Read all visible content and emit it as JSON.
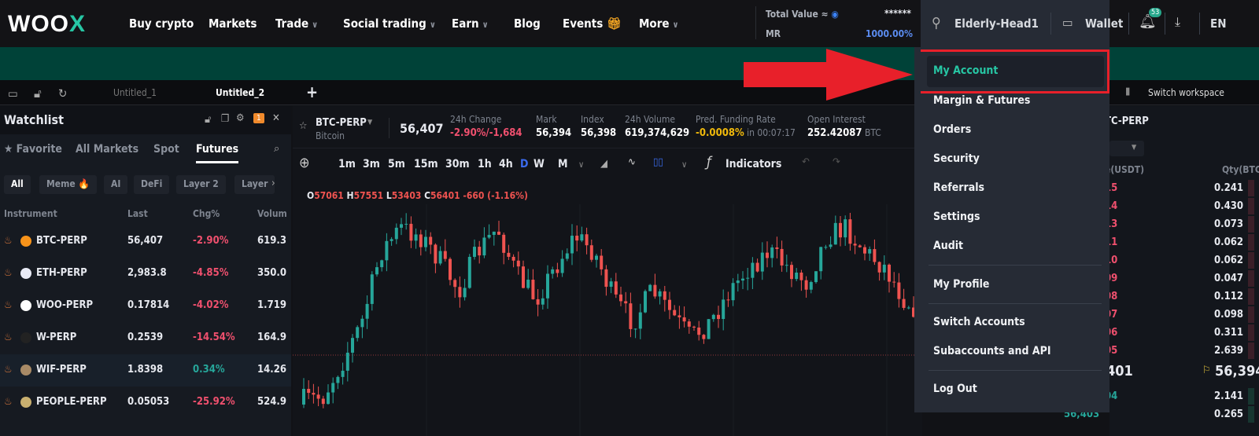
{
  "header": {
    "logo": "WOOX",
    "nav": [
      {
        "label": "Buy crypto"
      },
      {
        "label": "Markets"
      },
      {
        "label": "Trade",
        "dropdown": true
      },
      {
        "label": "Social trading",
        "dropdown": true
      },
      {
        "label": "Earn",
        "dropdown": true
      },
      {
        "label": "Blog"
      },
      {
        "label": "Events",
        "icon": "gift-icon"
      },
      {
        "label": "More",
        "dropdown": true
      }
    ],
    "total_value_label": "Total Value ≈",
    "total_value": "******",
    "mr_label": "MR",
    "mr_value": "1000.00%",
    "username": "Elderly-Head1",
    "wallet": "Wallet",
    "notif_count": "53",
    "lang": "EN"
  },
  "workspace": {
    "tabs": [
      "Untitled_1",
      "Untitled_2"
    ],
    "add": "+",
    "switch": "Switch workspace"
  },
  "watchlist": {
    "title": "Watchlist",
    "badge": "1",
    "tabs": [
      "★ Favorite",
      "All Markets",
      "Spot",
      "Futures"
    ],
    "active_tab": "Futures",
    "chips": [
      "All",
      "Meme 🔥",
      "AI",
      "DeFi",
      "Layer 2",
      "Layer"
    ],
    "columns": [
      "Instrument",
      "Last",
      "Chg%",
      "Volum"
    ],
    "rows": [
      {
        "symbol": "BTC-PERP",
        "last": "56,407",
        "chg": "-2.90%",
        "vol": "619.3",
        "up": false,
        "coin": "#f7931a"
      },
      {
        "symbol": "ETH-PERP",
        "last": "2,983.8",
        "chg": "-4.85%",
        "vol": "350.0",
        "up": false,
        "coin": "#e8eaf5"
      },
      {
        "symbol": "WOO-PERP",
        "last": "0.17814",
        "chg": "-4.02%",
        "vol": "1.719",
        "up": false,
        "coin": "#ffffff"
      },
      {
        "symbol": "W-PERP",
        "last": "0.2539",
        "chg": "-14.54%",
        "vol": "164.9",
        "up": false,
        "coin": "#222"
      },
      {
        "symbol": "WIF-PERP",
        "last": "1.8398",
        "chg": "0.34%",
        "vol": "14.26",
        "up": true,
        "coin": "#a88a66"
      },
      {
        "symbol": "PEOPLE-PERP",
        "last": "0.05053",
        "chg": "-25.92%",
        "vol": "524.9",
        "up": false,
        "coin": "#c9b070"
      }
    ]
  },
  "ticker": {
    "symbol": "BTC-PERP",
    "name": "Bitcoin",
    "price": "56,407",
    "stats": [
      {
        "label": "24h Change",
        "value": "-2.90%/-1,684",
        "color": "#f0506e"
      },
      {
        "label": "Mark",
        "value": "56,394"
      },
      {
        "label": "Index",
        "value": "56,398"
      },
      {
        "label": "24h Volume",
        "value": "619,374,629"
      },
      {
        "label": "Pred. Funding Rate",
        "value": "-0.0008%",
        "suffix": " in 00:07:17",
        "color": "#f0b90b"
      },
      {
        "label": "Open Interest",
        "value": "252.42087",
        "suffix": " BTC"
      }
    ]
  },
  "toolbar": {
    "timeframes": [
      "1m",
      "3m",
      "5m",
      "15m",
      "30m",
      "1h",
      "4h",
      "D",
      "W",
      "M"
    ],
    "active": "D",
    "indicators": "Indicators"
  },
  "ohlc": {
    "o_label": "O",
    "o": "57061",
    "h_label": "H",
    "h": "57551",
    "l_label": "L",
    "l": "53403",
    "c_label": "C",
    "c": "56401",
    "change": "-660 (-1.16%)"
  },
  "menu": {
    "items": [
      "My Account",
      "Margin & Futures",
      "Orders",
      "Security",
      "Referrals",
      "Settings",
      "Audit",
      "My Profile",
      "Switch Accounts",
      "Subaccounts and API",
      "Log Out"
    ],
    "highlighted": "My Account"
  },
  "orderbook": {
    "symbol": "TC-PERP",
    "price_col": "e(USDT)",
    "qty_col": "Qty(BTC)",
    "asks": [
      [
        "15",
        "0.241"
      ],
      [
        "14",
        "0.430"
      ],
      [
        "13",
        "0.073"
      ],
      [
        "11",
        "0.062"
      ],
      [
        "10",
        "0.062"
      ],
      [
        "09",
        "0.047"
      ],
      [
        "08",
        "0.112"
      ],
      [
        "07",
        "0.098"
      ],
      [
        "06",
        "0.311"
      ],
      [
        "05",
        "2.639"
      ]
    ],
    "last": "401",
    "mark": "56,394",
    "bids": [
      [
        "04",
        "2.141"
      ],
      [
        "56,403",
        "0.265"
      ]
    ]
  },
  "colors": {
    "up": "#26a69a",
    "down": "#ef5350",
    "accent": "#27c6a4",
    "banner": "#004238",
    "arrow": "#e8202a"
  }
}
